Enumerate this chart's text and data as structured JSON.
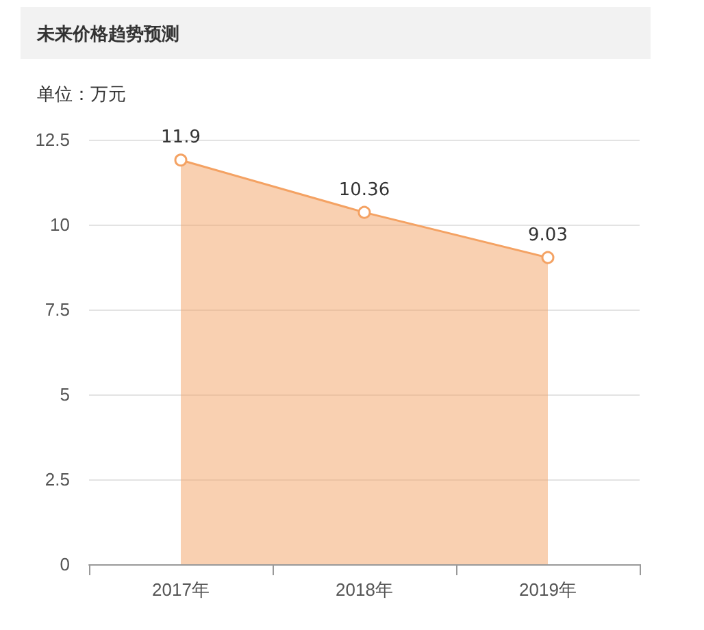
{
  "chart_data": {
    "type": "area",
    "title": "未来价格趋势预测",
    "ylabel": "单位：万元",
    "categories": [
      "2017年",
      "2018年",
      "2019年"
    ],
    "series": [
      {
        "color": "#f4a263",
        "values": [
          11.9,
          10.36,
          9.03
        ]
      }
    ],
    "ylim": [
      0,
      12.5
    ],
    "yticks": [
      0,
      2.5,
      5,
      7.5,
      10,
      12.5
    ],
    "grid": "y",
    "marker": "circle",
    "data_labels": true
  }
}
